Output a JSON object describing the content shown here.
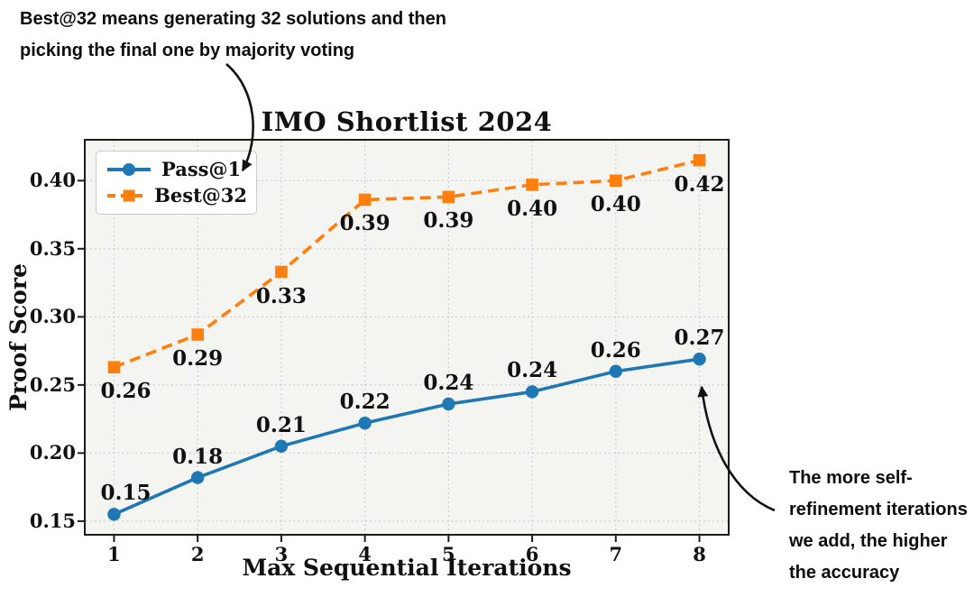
{
  "figure": {
    "background": "#ffffff",
    "plot_background": "#f4f4f1",
    "grid_color": "#cfcfcf"
  },
  "annotations": {
    "top": {
      "lines": [
        "Best@32 means generating 32 solutions and then",
        "picking the final one by majority voting"
      ]
    },
    "bottom_right": {
      "lines": [
        "The more self-",
        "refinement iterations",
        "we add, the higher",
        "the accuracy"
      ]
    }
  },
  "chart_data": {
    "type": "line",
    "title": "IMO Shortlist 2024",
    "xlabel": "Max Sequential Iterations",
    "ylabel": "Proof Score",
    "x": [
      1,
      2,
      3,
      4,
      5,
      6,
      7,
      8
    ],
    "xlim": [
      0.65,
      8.35
    ],
    "ylim": [
      0.14,
      0.43
    ],
    "xticks": [
      "1",
      "2",
      "3",
      "4",
      "5",
      "6",
      "7",
      "8"
    ],
    "ytick_values": [
      0.15,
      0.2,
      0.25,
      0.3,
      0.35,
      0.4
    ],
    "ytick_labels": [
      "0.15",
      "0.20",
      "0.25",
      "0.30",
      "0.35",
      "0.40"
    ],
    "grid": true,
    "legend_position": "upper left",
    "series": [
      {
        "name": "Pass@1",
        "color": "#1f77b4",
        "style": "solid",
        "marker": "circle",
        "values": [
          0.155,
          0.182,
          0.205,
          0.222,
          0.236,
          0.245,
          0.26,
          0.269
        ],
        "labels": [
          "0.15",
          "0.18",
          "0.21",
          "0.22",
          "0.24",
          "0.24",
          "0.26",
          "0.27"
        ]
      },
      {
        "name": "Best@32",
        "color": "#ff7f0e",
        "style": "dashed",
        "marker": "square",
        "values": [
          0.263,
          0.287,
          0.333,
          0.386,
          0.388,
          0.397,
          0.4,
          0.415
        ],
        "labels": [
          "0.26",
          "0.29",
          "0.33",
          "0.39",
          "0.39",
          "0.40",
          "0.40",
          "0.42"
        ]
      }
    ]
  }
}
